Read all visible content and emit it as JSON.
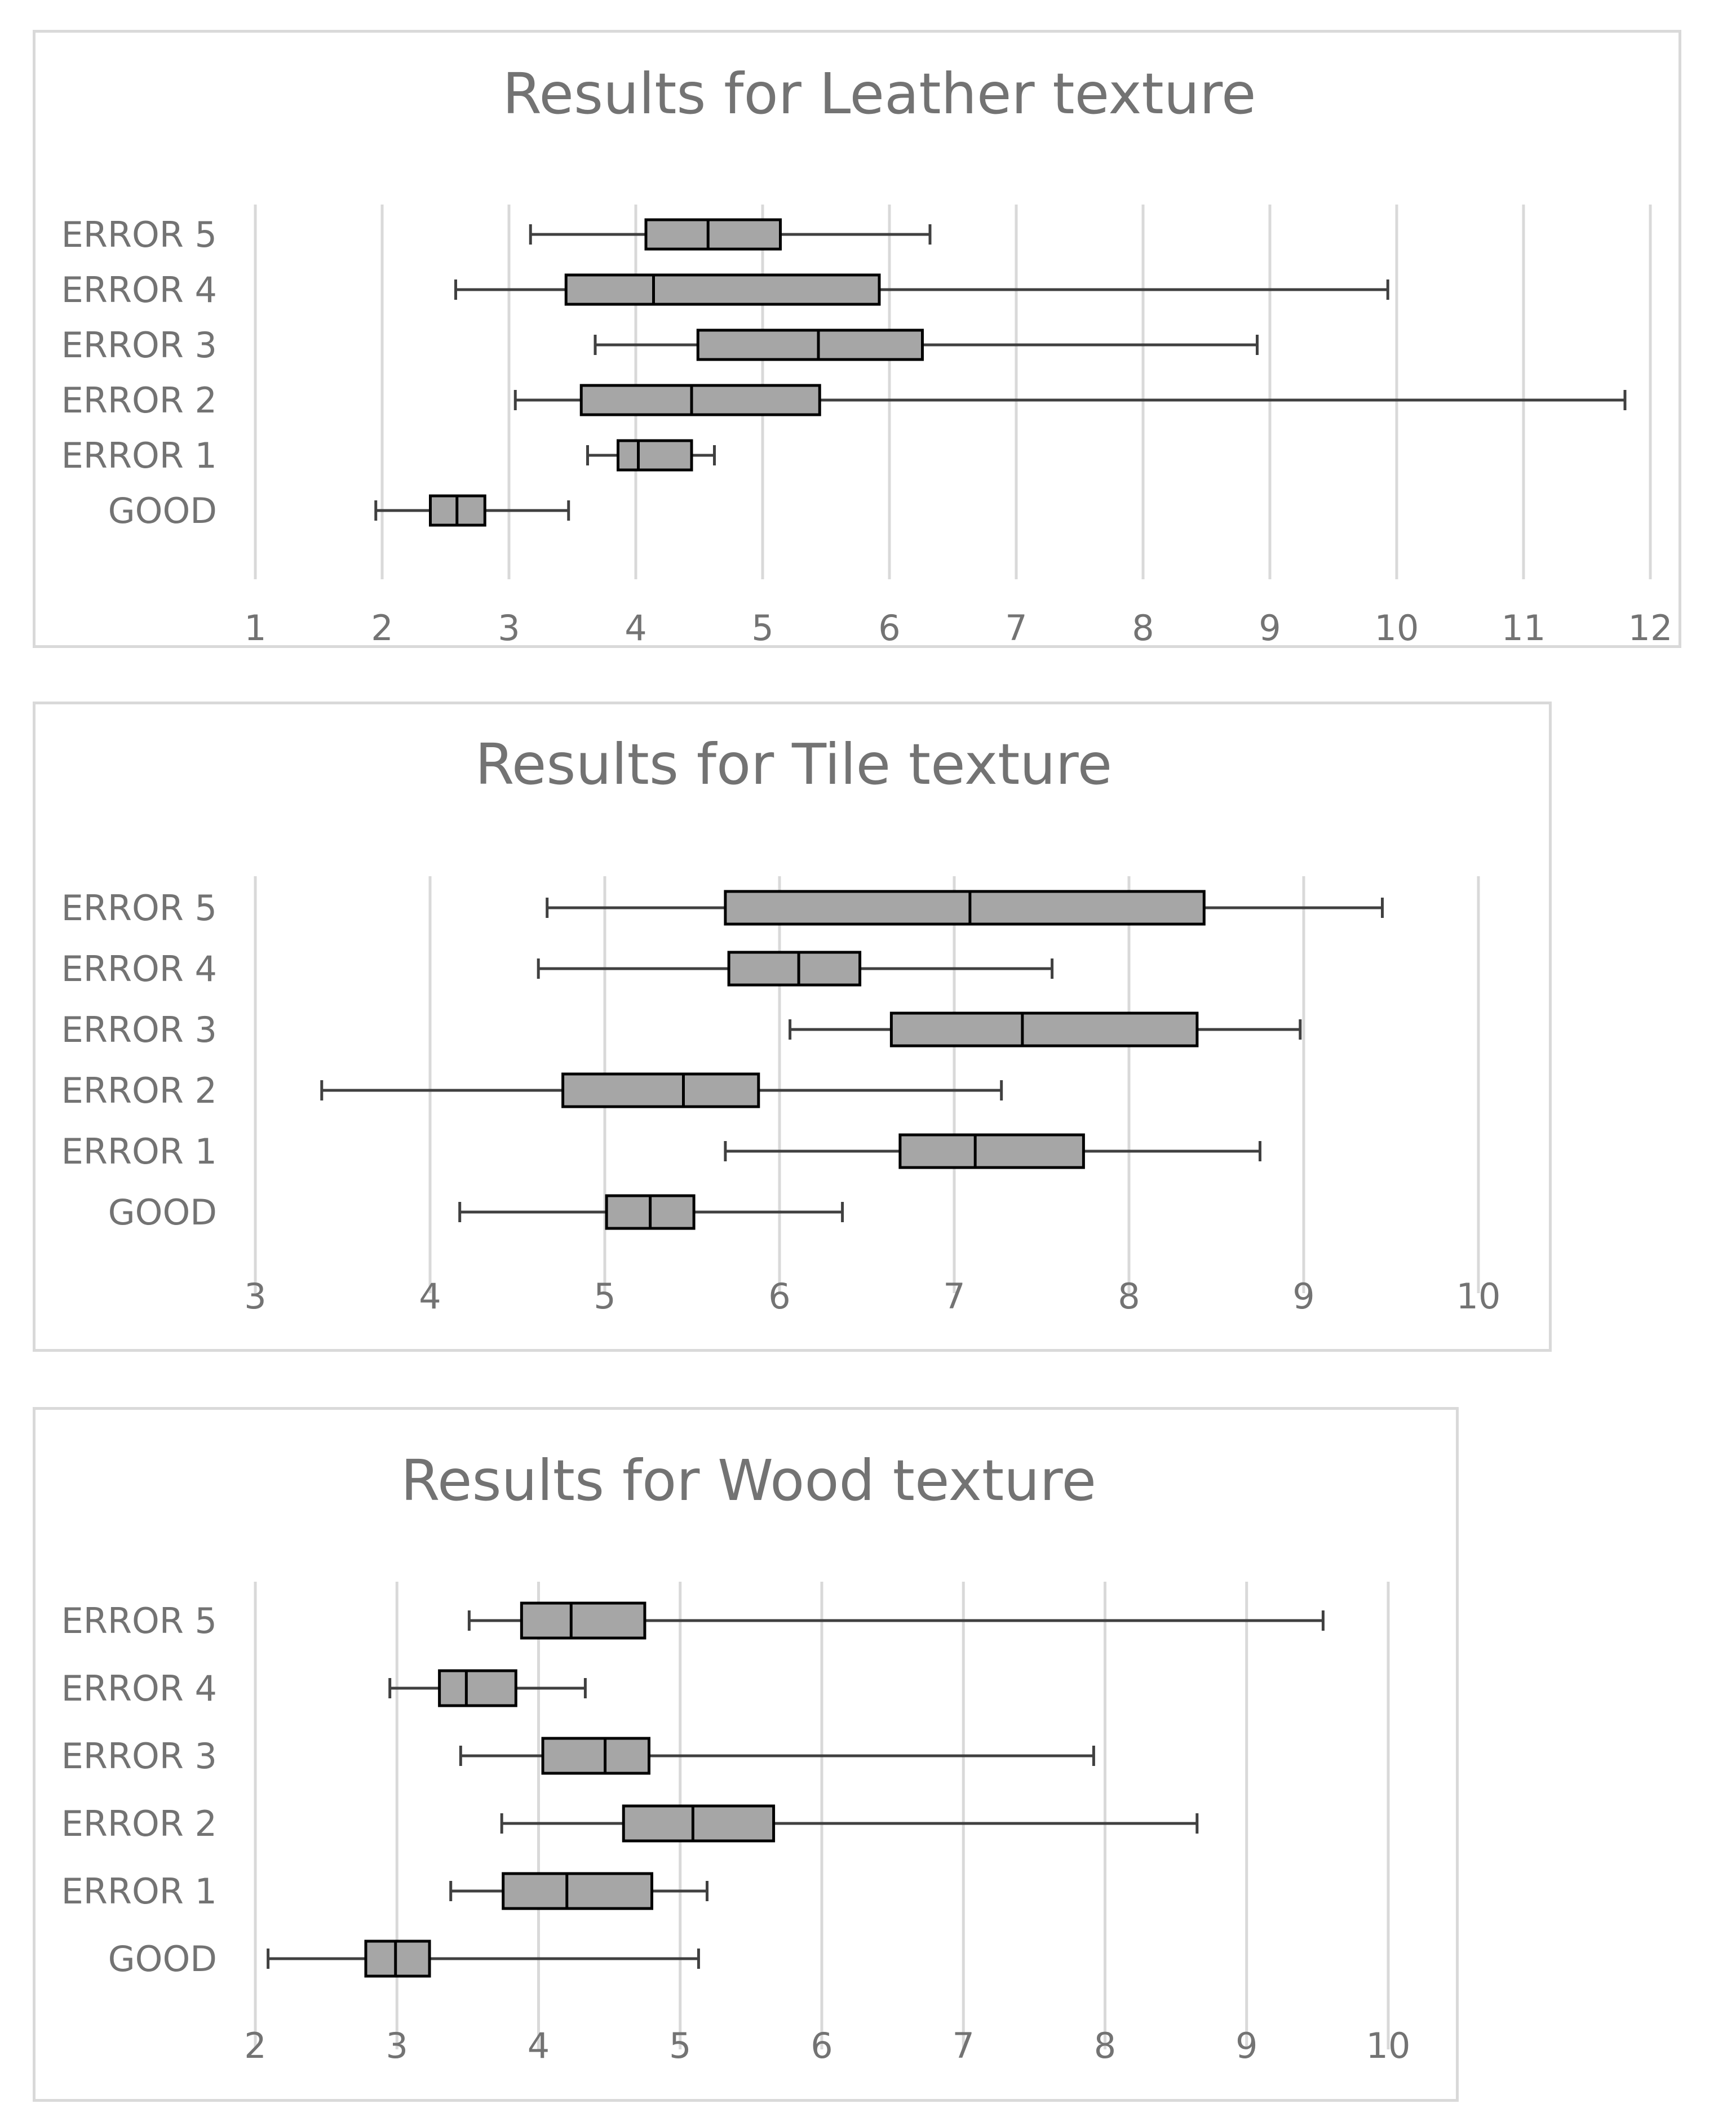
{
  "style": {
    "box_fill": "#a6a6a6",
    "box_stroke": "#000000",
    "whisker_color": "#404040",
    "grid_color": "#d9d9d9",
    "text_color": "#737373",
    "border_color": "#d9d9d9"
  },
  "chart_data": [
    {
      "type": "boxplot",
      "orientation": "horizontal",
      "title": "Results for Leather texture",
      "xlim": [
        1,
        12
      ],
      "xticks": [
        1,
        2,
        3,
        4,
        5,
        6,
        7,
        8,
        9,
        10,
        11,
        12
      ],
      "tick_labels": [
        "1",
        "2",
        "3",
        "4",
        "5",
        "6",
        "7",
        "8",
        "9",
        "10",
        "11",
        "12"
      ],
      "grid": true,
      "categories": [
        "ERROR 5",
        "ERROR 4",
        "ERROR 3",
        "ERROR 2",
        "ERROR 1",
        "GOOD"
      ],
      "boxes": [
        {
          "min": 3.17,
          "q1": 4.08,
          "median": 4.57,
          "q3": 5.14,
          "max": 6.32
        },
        {
          "min": 2.58,
          "q1": 3.45,
          "median": 4.14,
          "q3": 5.92,
          "max": 9.93
        },
        {
          "min": 3.68,
          "q1": 4.49,
          "median": 5.44,
          "q3": 6.26,
          "max": 8.9
        },
        {
          "min": 3.05,
          "q1": 3.57,
          "median": 4.44,
          "q3": 5.45,
          "max": 11.8
        },
        {
          "min": 3.62,
          "q1": 3.86,
          "median": 4.02,
          "q3": 4.44,
          "max": 4.62
        },
        {
          "min": 1.95,
          "q1": 2.38,
          "median": 2.59,
          "q3": 2.81,
          "max": 3.47
        }
      ]
    },
    {
      "type": "boxplot",
      "orientation": "horizontal",
      "title": "Results for Tile texture",
      "xlim": [
        3,
        10
      ],
      "xticks": [
        3,
        4,
        5,
        6,
        7,
        8,
        9,
        10
      ],
      "tick_labels": [
        "3",
        "4",
        "5",
        "6",
        "7",
        "8",
        "9",
        "10"
      ],
      "grid": true,
      "categories": [
        "ERROR 5",
        "ERROR 4",
        "ERROR 3",
        "ERROR 2",
        "ERROR 1",
        "GOOD"
      ],
      "boxes": [
        {
          "min": 4.67,
          "q1": 5.69,
          "median": 7.09,
          "q3": 8.43,
          "max": 9.45
        },
        {
          "min": 4.62,
          "q1": 5.71,
          "median": 6.11,
          "q3": 6.46,
          "max": 7.56
        },
        {
          "min": 6.06,
          "q1": 6.64,
          "median": 7.39,
          "q3": 8.39,
          "max": 8.98
        },
        {
          "min": 3.38,
          "q1": 4.76,
          "median": 5.45,
          "q3": 5.88,
          "max": 7.27
        },
        {
          "min": 5.69,
          "q1": 6.69,
          "median": 7.12,
          "q3": 7.74,
          "max": 8.75
        },
        {
          "min": 4.17,
          "q1": 5.01,
          "median": 5.26,
          "q3": 5.51,
          "max": 6.36
        }
      ]
    },
    {
      "type": "boxplot",
      "orientation": "horizontal",
      "title": "Results for Wood texture",
      "xlim": [
        2,
        10
      ],
      "xticks": [
        2,
        3,
        4,
        5,
        6,
        7,
        8,
        9,
        10
      ],
      "tick_labels": [
        "2",
        "3",
        "4",
        "5",
        "6",
        "7",
        "8",
        "9",
        "10"
      ],
      "grid": true,
      "categories": [
        "ERROR 5",
        "ERROR 4",
        "ERROR 3",
        "ERROR 2",
        "ERROR 1",
        "GOOD"
      ],
      "boxes": [
        {
          "min": 3.51,
          "q1": 3.88,
          "median": 4.23,
          "q3": 4.75,
          "max": 9.54
        },
        {
          "min": 2.95,
          "q1": 3.3,
          "median": 3.49,
          "q3": 3.84,
          "max": 4.33
        },
        {
          "min": 3.45,
          "q1": 4.03,
          "median": 4.47,
          "q3": 4.78,
          "max": 7.92
        },
        {
          "min": 3.74,
          "q1": 4.6,
          "median": 5.09,
          "q3": 5.66,
          "max": 8.65
        },
        {
          "min": 3.38,
          "q1": 3.75,
          "median": 4.2,
          "q3": 4.8,
          "max": 5.19
        },
        {
          "min": 2.09,
          "q1": 2.78,
          "median": 2.99,
          "q3": 3.23,
          "max": 5.13
        }
      ]
    }
  ]
}
